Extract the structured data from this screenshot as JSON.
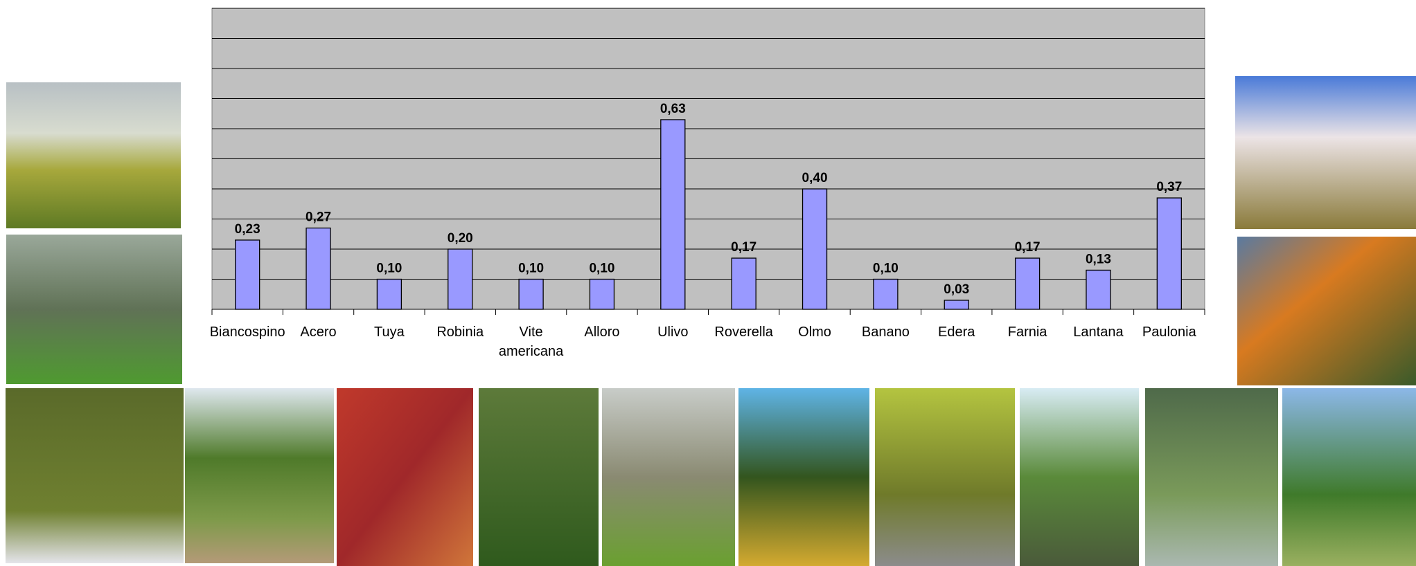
{
  "chart_data": {
    "type": "bar",
    "categories": [
      "Biancospino",
      "Acero",
      "Tuya",
      "Robinia",
      "Vite americana",
      "Alloro",
      "Ulivo",
      "Roverella",
      "Olmo",
      "Banano",
      "Edera",
      "Farnia",
      "Lantana",
      "Paulonia"
    ],
    "values": [
      0.23,
      0.27,
      0.1,
      0.2,
      0.1,
      0.1,
      0.63,
      0.17,
      0.4,
      0.1,
      0.03,
      0.17,
      0.13,
      0.37
    ],
    "value_labels": [
      "0,23",
      "0,27",
      "0,10",
      "0,20",
      "0,10",
      "0,10",
      "0,63",
      "0,17",
      "0,40",
      "0,10",
      "0,03",
      "0,17",
      "0,13",
      "0,37"
    ],
    "color": "#9999ff",
    "ylim": [
      0,
      1.0
    ],
    "yticks": [
      0,
      0.1,
      0.2,
      0.3,
      0.4,
      0.5,
      0.6,
      0.7,
      0.8,
      0.9,
      1.0
    ],
    "grid": true
  }
}
